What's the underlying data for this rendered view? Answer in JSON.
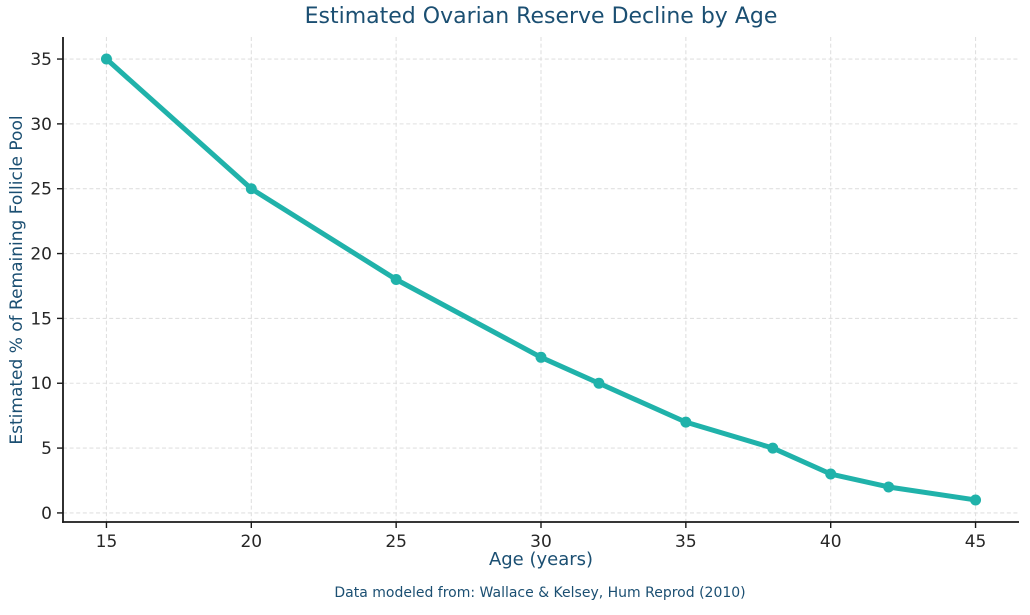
{
  "chart_data": {
    "type": "line",
    "title": "Estimated Ovarian Reserve Decline by Age",
    "xlabel": "Age (years)",
    "ylabel": "Estimated % of Remaining Follicle Pool",
    "annotation": "Data modeled from: Wallace & Kelsey, Hum Reprod (2010)",
    "series": [
      {
        "name": "remaining-follicle-pool-percent",
        "x": [
          15,
          20,
          25,
          30,
          32,
          35,
          38,
          40,
          42,
          45
        ],
        "y": [
          35,
          25,
          18,
          12,
          10,
          7,
          5,
          3,
          2,
          1
        ]
      }
    ],
    "xticks": [
      15,
      20,
      25,
      30,
      35,
      40,
      45
    ],
    "yticks": [
      0,
      5,
      10,
      15,
      20,
      25,
      30,
      35
    ],
    "xlim": [
      13.5,
      46.5
    ],
    "ylim": [
      -0.7,
      36.7
    ],
    "grid": true,
    "grid_style": "dashed",
    "legend": null,
    "colors": {
      "line": "#20b2aa",
      "marker": "#20b2aa",
      "title": "#1b4f72",
      "axis_labels": "#1b4f72",
      "tick_labels": "#262626",
      "spine": "#1a1a1a",
      "grid": "#e0e0e0",
      "background": "#ffffff"
    }
  }
}
